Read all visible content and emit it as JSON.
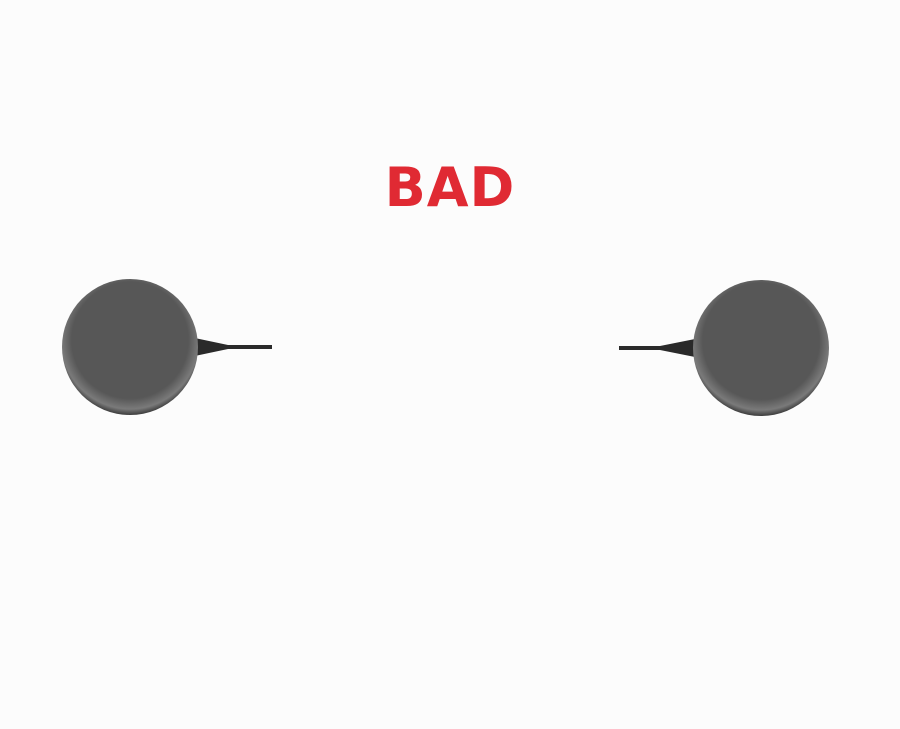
{
  "status": {
    "label": "BAD",
    "color": "#e02a33"
  },
  "scene": {
    "body_color": "#575757",
    "rim_color": "#7a7a7a",
    "edge_color": "#3c3c3c",
    "stem_color": "#2a2a2a"
  }
}
